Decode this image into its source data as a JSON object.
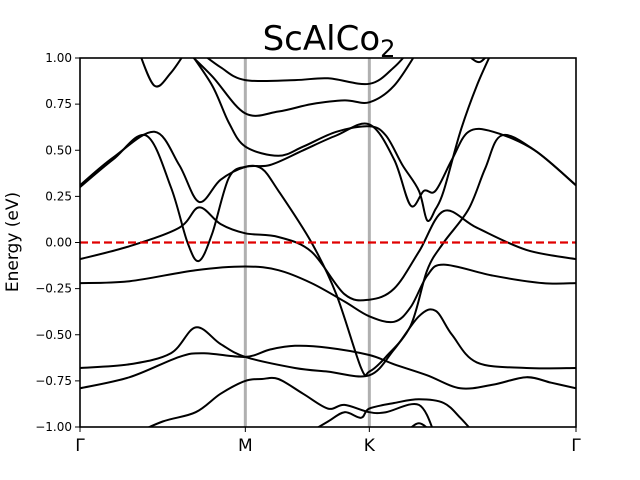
{
  "chart_data": {
    "type": "line",
    "title": {
      "main": "ScAlCo",
      "subscript": "2"
    },
    "xlabel": "",
    "ylabel": "Energy (eV)",
    "ylim": [
      -1.0,
      1.0
    ],
    "xlim": [
      0,
      3
    ],
    "y_ticks": [
      1.0,
      0.75,
      0.5,
      0.25,
      0.0,
      -0.25,
      -0.5,
      -0.75,
      -1.0
    ],
    "y_tick_labels": [
      "1.00",
      "0.75",
      "0.50",
      "0.25",
      "0.00",
      "−0.25",
      "−0.50",
      "−0.75",
      "−1.00"
    ],
    "x_ticks": [
      0,
      1,
      1.75,
      3
    ],
    "x_tick_labels": [
      "Γ",
      "M",
      "K",
      "Γ"
    ],
    "vertical_lines_at": [
      1,
      1.75
    ],
    "vertical_line_color": "#b0b0b0",
    "fermi_level": 0.0,
    "fermi_color": "#e00000",
    "band_color": "#000000",
    "grid": false,
    "legend": "none",
    "bands": [
      {
        "points": [
          [
            0,
            -0.79
          ],
          [
            0.3,
            -0.73
          ],
          [
            0.6,
            -0.62
          ],
          [
            0.75,
            -0.6
          ],
          [
            1.0,
            -0.62
          ],
          [
            1.15,
            -0.58
          ],
          [
            1.3,
            -0.56
          ],
          [
            1.5,
            -0.57
          ],
          [
            1.75,
            -0.61
          ],
          [
            1.9,
            -0.66
          ],
          [
            2.1,
            -0.72
          ],
          [
            2.3,
            -0.79
          ],
          [
            2.5,
            -0.77
          ],
          [
            2.7,
            -0.73
          ],
          [
            2.85,
            -0.76
          ],
          [
            3,
            -0.79
          ]
        ]
      },
      {
        "points": [
          [
            0,
            -0.68
          ],
          [
            0.3,
            -0.66
          ],
          [
            0.55,
            -0.6
          ],
          [
            0.7,
            -0.46
          ],
          [
            0.85,
            -0.55
          ],
          [
            1.0,
            -0.62
          ],
          [
            1.3,
            -0.68
          ],
          [
            1.5,
            -0.7
          ],
          [
            1.75,
            -0.72
          ],
          [
            1.9,
            -0.58
          ],
          [
            2.05,
            -0.4
          ],
          [
            2.15,
            -0.37
          ],
          [
            2.25,
            -0.5
          ],
          [
            2.4,
            -0.65
          ],
          [
            2.7,
            -0.68
          ],
          [
            3,
            -0.68
          ]
        ]
      },
      {
        "points": [
          [
            0,
            -0.22
          ],
          [
            0.3,
            -0.21
          ],
          [
            0.7,
            -0.15
          ],
          [
            1.0,
            -0.13
          ],
          [
            1.2,
            -0.15
          ],
          [
            1.4,
            -0.22
          ],
          [
            1.6,
            -0.32
          ],
          [
            1.75,
            -0.4
          ],
          [
            1.9,
            -0.43
          ],
          [
            2.0,
            -0.35
          ],
          [
            2.1,
            -0.18
          ],
          [
            2.2,
            -0.12
          ],
          [
            2.5,
            -0.18
          ],
          [
            2.8,
            -0.22
          ],
          [
            3,
            -0.22
          ]
        ]
      },
      {
        "points": [
          [
            0,
            -0.09
          ],
          [
            0.3,
            -0.02
          ],
          [
            0.6,
            0.08
          ],
          [
            0.72,
            0.19
          ],
          [
            0.85,
            0.1
          ],
          [
            1.0,
            0.05
          ],
          [
            1.2,
            0.03
          ],
          [
            1.4,
            -0.05
          ],
          [
            1.6,
            -0.28
          ],
          [
            1.75,
            -0.31
          ],
          [
            1.9,
            -0.25
          ],
          [
            2.05,
            -0.05
          ],
          [
            2.2,
            0.17
          ],
          [
            2.4,
            0.08
          ],
          [
            2.7,
            -0.04
          ],
          [
            3,
            -0.09
          ]
        ]
      },
      {
        "points": [
          [
            0,
            0.3
          ],
          [
            0.2,
            0.45
          ],
          [
            0.4,
            0.58
          ],
          [
            0.55,
            0.3
          ],
          [
            0.65,
            0.0
          ],
          [
            0.72,
            -0.1
          ],
          [
            0.8,
            0.05
          ],
          [
            0.9,
            0.35
          ],
          [
            1.0,
            0.41
          ],
          [
            1.1,
            0.4
          ],
          [
            1.2,
            0.28
          ],
          [
            1.4,
            0.0
          ],
          [
            1.55,
            -0.28
          ],
          [
            1.7,
            -0.68
          ],
          [
            1.75,
            -0.7
          ],
          [
            1.85,
            -0.62
          ],
          [
            2.0,
            -0.45
          ],
          [
            2.1,
            -0.15
          ],
          [
            2.2,
            0.0
          ],
          [
            2.35,
            0.18
          ],
          [
            2.45,
            0.4
          ],
          [
            2.55,
            0.58
          ],
          [
            2.75,
            0.5
          ],
          [
            3,
            0.31
          ]
        ]
      },
      {
        "points": [
          [
            0,
            0.31
          ],
          [
            0.2,
            0.46
          ],
          [
            0.45,
            0.6
          ],
          [
            0.6,
            0.42
          ],
          [
            0.72,
            0.22
          ],
          [
            0.85,
            0.34
          ],
          [
            1.0,
            0.41
          ],
          [
            1.15,
            0.42
          ],
          [
            1.35,
            0.5
          ],
          [
            1.55,
            0.58
          ],
          [
            1.75,
            0.64
          ],
          [
            1.9,
            0.45
          ],
          [
            2.0,
            0.2
          ],
          [
            2.08,
            0.28
          ],
          [
            2.15,
            0.28
          ],
          [
            2.25,
            0.45
          ],
          [
            2.35,
            0.6
          ],
          [
            2.5,
            0.6
          ],
          [
            2.75,
            0.5
          ],
          [
            3,
            0.31
          ]
        ]
      },
      {
        "points": [
          [
            0.35,
            1.05
          ],
          [
            0.45,
            0.85
          ],
          [
            0.55,
            0.92
          ],
          [
            0.65,
            1.05
          ]
        ]
      },
      {
        "points": [
          [
            0.65,
            1.05
          ],
          [
            0.8,
            0.85
          ],
          [
            0.9,
            0.65
          ],
          [
            1.0,
            0.52
          ],
          [
            1.2,
            0.47
          ],
          [
            1.35,
            0.52
          ],
          [
            1.55,
            0.6
          ],
          [
            1.75,
            0.63
          ],
          [
            1.85,
            0.58
          ],
          [
            1.95,
            0.42
          ],
          [
            2.05,
            0.28
          ],
          [
            2.1,
            0.12
          ],
          [
            2.15,
            0.18
          ],
          [
            2.2,
            0.28
          ],
          [
            2.3,
            0.6
          ],
          [
            2.4,
            0.85
          ],
          [
            2.5,
            1.05
          ]
        ]
      },
      {
        "points": [
          [
            0.63,
            1.05
          ],
          [
            0.8,
            0.9
          ],
          [
            1.0,
            0.7
          ],
          [
            1.2,
            0.71
          ],
          [
            1.4,
            0.75
          ],
          [
            1.6,
            0.77
          ],
          [
            1.75,
            0.76
          ],
          [
            1.9,
            0.85
          ],
          [
            2.05,
            1.05
          ]
        ]
      },
      {
        "points": [
          [
            0.7,
            1.05
          ],
          [
            0.85,
            0.95
          ],
          [
            1.0,
            0.88
          ],
          [
            1.3,
            0.88
          ],
          [
            1.5,
            0.89
          ],
          [
            1.75,
            0.86
          ],
          [
            1.9,
            0.95
          ],
          [
            2.0,
            1.05
          ]
        ]
      },
      {
        "points": [
          [
            2.3,
            1.05
          ],
          [
            2.4,
            0.98
          ],
          [
            2.45,
            1.0
          ],
          [
            2.5,
            1.05
          ]
        ]
      },
      {
        "points": [
          [
            0.3,
            -1.05
          ],
          [
            0.5,
            -0.97
          ],
          [
            0.7,
            -0.92
          ],
          [
            0.85,
            -0.82
          ],
          [
            1.0,
            -0.75
          ],
          [
            1.1,
            -0.74
          ],
          [
            1.2,
            -0.74
          ],
          [
            1.35,
            -0.82
          ],
          [
            1.5,
            -0.9
          ],
          [
            1.6,
            -0.88
          ],
          [
            1.75,
            -0.92
          ],
          [
            1.85,
            -0.92
          ],
          [
            2.05,
            -0.88
          ],
          [
            2.15,
            -1.05
          ]
        ]
      },
      {
        "points": [
          [
            1.35,
            -1.05
          ],
          [
            1.5,
            -0.97
          ],
          [
            1.6,
            -0.92
          ],
          [
            1.7,
            -0.95
          ],
          [
            1.75,
            -0.9
          ],
          [
            1.9,
            -0.87
          ],
          [
            2.05,
            -0.85
          ],
          [
            2.2,
            -0.87
          ],
          [
            2.3,
            -0.95
          ],
          [
            2.4,
            -1.05
          ]
        ]
      },
      {
        "points": [
          [
            1.95,
            -1.05
          ],
          [
            2.05,
            -0.98
          ],
          [
            2.15,
            -1.05
          ]
        ]
      }
    ]
  }
}
